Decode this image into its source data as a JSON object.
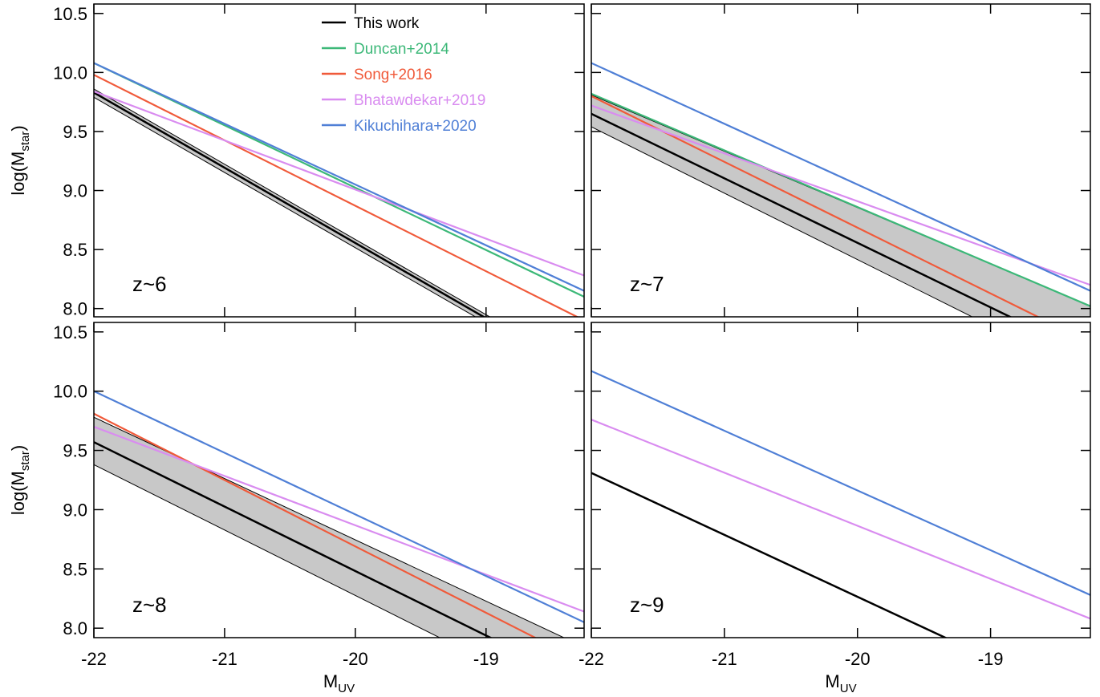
{
  "chart_data": [
    {
      "type": "line",
      "annotation": "z~6",
      "ylabel": [
        "log(M",
        "star",
        ")"
      ],
      "legend": "upper center",
      "x": [
        -22,
        -18.25
      ],
      "xlim": [
        -22,
        -18.25
      ],
      "ylim": [
        7.93,
        10.58
      ],
      "xticks": [
        -22,
        -21,
        -20,
        -19
      ],
      "yticks": [
        {
          "value": 8.0,
          "label": "8.0"
        },
        8.5,
        {
          "value": 9.0,
          "label": "9.0"
        },
        9.5,
        {
          "value": 10.0,
          "label": "10.0"
        },
        10.5
      ],
      "series": [
        {
          "name": "This work",
          "color": "#000000",
          "values": [
            9.83,
            7.44
          ],
          "band": {
            "upper": [
              9.86,
              7.47
            ],
            "lower": [
              9.79,
              7.4
            ],
            "color": "#c8c8c8"
          }
        },
        {
          "name": "Duncan+2014",
          "color": "#3cb878",
          "values": [
            10.08,
            8.1
          ]
        },
        {
          "name": "Song+2016",
          "color": "#f05a3a",
          "values": [
            9.98,
            7.9
          ]
        },
        {
          "name": "Bhatawdekar+2019",
          "color": "#d98cf0",
          "values": [
            9.84,
            8.28
          ]
        },
        {
          "name": "Kikuchihara+2020",
          "color": "#4f7fd6",
          "values": [
            10.08,
            8.15
          ]
        }
      ]
    },
    {
      "type": "line",
      "annotation": "z~7",
      "x": [
        -22,
        -18.25
      ],
      "xlim": [
        -22,
        -18.25
      ],
      "ylim": [
        7.93,
        10.58
      ],
      "xticks": [
        -22,
        -21,
        -20,
        -19
      ],
      "yticks": [
        {
          "value": 8.0,
          "label": "8.0"
        },
        8.5,
        {
          "value": 9.0,
          "label": "9.0"
        },
        9.5,
        {
          "value": 10.0,
          "label": "10.0"
        },
        10.5
      ],
      "series": [
        {
          "color": "#000000",
          "values": [
            9.65,
            7.6
          ],
          "band": {
            "upper": [
              9.81,
              8.02
            ],
            "lower": [
              9.54,
              7.43
            ],
            "color": "#c8c8c8"
          }
        },
        {
          "color": "#3cb878",
          "values": [
            9.82,
            8.02
          ]
        },
        {
          "color": "#f05a3a",
          "values": [
            9.8,
            7.71
          ]
        },
        {
          "color": "#d98cf0",
          "values": [
            9.72,
            8.2
          ]
        },
        {
          "color": "#4f7fd6",
          "values": [
            10.08,
            8.15
          ]
        }
      ]
    },
    {
      "type": "line",
      "annotation": "z~8",
      "ylabel": [
        "log(M",
        "star",
        ")"
      ],
      "xlabel": [
        "M",
        "UV"
      ],
      "x": [
        -22,
        -18.25
      ],
      "xlim": [
        -22,
        -18.25
      ],
      "ylim": [
        7.92,
        10.58
      ],
      "xticks": [
        -22,
        -21,
        -20,
        -19
      ],
      "yticks": [
        {
          "value": 8.0,
          "label": "8.0"
        },
        8.5,
        {
          "value": 9.0,
          "label": "9.0"
        },
        9.5,
        {
          "value": 10.0,
          "label": "10.0"
        },
        10.5
      ],
      "series": [
        {
          "color": "#000000",
          "values": [
            9.57,
            7.53
          ],
          "band": {
            "upper": [
              9.78,
              7.84
            ],
            "lower": [
              9.38,
              7.31
            ],
            "color": "#c8c8c8"
          }
        },
        {
          "color": "#f05a3a",
          "values": [
            9.81,
            7.71
          ]
        },
        {
          "color": "#d98cf0",
          "values": [
            9.7,
            8.14
          ]
        },
        {
          "color": "#4f7fd6",
          "values": [
            10.0,
            8.05
          ]
        }
      ]
    },
    {
      "type": "line",
      "annotation": "z~9",
      "xlabel": [
        "M",
        "UV"
      ],
      "x": [
        -22,
        -18.25
      ],
      "xlim": [
        -22,
        -18.25
      ],
      "ylim": [
        7.92,
        10.58
      ],
      "xticks": [
        -22,
        -21,
        -20,
        -19
      ],
      "yticks": [
        {
          "value": 8.0,
          "label": "8.0"
        },
        8.5,
        {
          "value": 9.0,
          "label": "9.0"
        },
        9.5,
        {
          "value": 10.0,
          "label": "10.0"
        },
        10.5
      ],
      "series": [
        {
          "color": "#000000",
          "values": [
            9.31,
            7.35
          ]
        },
        {
          "color": "#d98cf0",
          "values": [
            9.76,
            8.08
          ]
        },
        {
          "color": "#4f7fd6",
          "values": [
            10.17,
            8.28
          ]
        }
      ]
    }
  ]
}
